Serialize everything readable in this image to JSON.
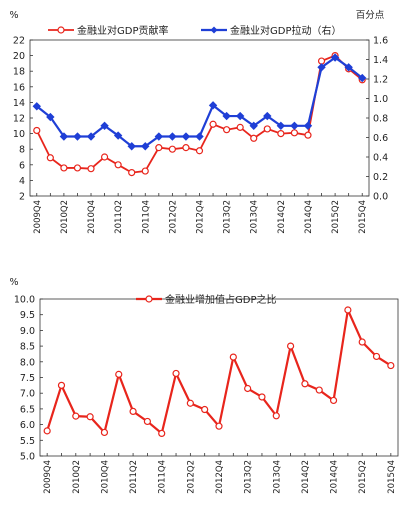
{
  "chart_data": [
    {
      "type": "line",
      "title": "",
      "ylabel_left": "%",
      "ylabel_right": "百分点",
      "ylim_left": [
        2,
        22
      ],
      "yticks_left": [
        "2",
        "4",
        "6",
        "8",
        "10",
        "12",
        "14",
        "16",
        "18",
        "20",
        "22"
      ],
      "ylim_right": [
        0.0,
        1.6
      ],
      "yticks_right": [
        "0.0",
        "0.2",
        "0.4",
        "0.6",
        "0.8",
        "1.0",
        "1.2",
        "1.4",
        "1.6"
      ],
      "grid": false,
      "legend_position": "top",
      "x": [
        "2009Q4",
        "2010Q1",
        "2010Q2",
        "2010Q3",
        "2010Q4",
        "2011Q1",
        "2011Q2",
        "2011Q3",
        "2011Q4",
        "2012Q1",
        "2012Q2",
        "2012Q3",
        "2012Q4",
        "2013Q1",
        "2013Q2",
        "2013Q3",
        "2013Q4",
        "2014Q1",
        "2014Q2",
        "2014Q3",
        "2014Q4",
        "2015Q1",
        "2015Q2",
        "2015Q3",
        "2015Q4"
      ],
      "xtick_labels": [
        "2009Q4",
        "2010Q2",
        "2010Q4",
        "2011Q2",
        "2011Q4",
        "2012Q2",
        "2012Q4",
        "2013Q2",
        "2013Q4",
        "2014Q2",
        "2014Q4",
        "2015Q2",
        "2015Q4"
      ],
      "series": [
        {
          "name": "金融业对GDP贡献率",
          "axis": "left",
          "color": "#e8251c",
          "marker": "open-circle",
          "values": [
            10.4,
            6.9,
            5.6,
            5.6,
            5.5,
            7.0,
            6.0,
            5.0,
            5.2,
            8.2,
            8.0,
            8.2,
            7.8,
            11.2,
            10.5,
            10.8,
            9.4,
            10.6,
            10.0,
            10.1,
            9.8,
            19.3,
            20.0,
            18.3,
            16.9
          ]
        },
        {
          "name": "金融业对GDP拉动（右）",
          "axis": "right",
          "color": "#1f3fd6",
          "marker": "filled-diamond",
          "values": [
            0.92,
            0.81,
            0.61,
            0.61,
            0.61,
            0.72,
            0.62,
            0.51,
            0.51,
            0.61,
            0.61,
            0.61,
            0.61,
            0.93,
            0.82,
            0.82,
            0.72,
            0.82,
            0.72,
            0.72,
            0.72,
            1.32,
            1.42,
            1.32,
            1.21
          ]
        }
      ]
    },
    {
      "type": "line",
      "title": "",
      "ylabel": "%",
      "ylim": [
        5.0,
        10.0
      ],
      "yticks": [
        "5.0",
        "5.5",
        "6.0",
        "6.5",
        "7.0",
        "7.5",
        "8.0",
        "8.5",
        "9.0",
        "9.5",
        "10.0"
      ],
      "grid": false,
      "legend_position": "top",
      "x": [
        "2009Q4",
        "2010Q1",
        "2010Q2",
        "2010Q3",
        "2010Q4",
        "2011Q1",
        "2011Q2",
        "2011Q3",
        "2011Q4",
        "2012Q1",
        "2012Q2",
        "2012Q3",
        "2012Q4",
        "2013Q1",
        "2013Q2",
        "2013Q3",
        "2013Q4",
        "2014Q1",
        "2014Q2",
        "2014Q3",
        "2014Q4",
        "2015Q1",
        "2015Q2",
        "2015Q3",
        "2015Q4"
      ],
      "xtick_labels": [
        "2009Q4",
        "2010Q2",
        "2010Q4",
        "2011Q2",
        "2011Q4",
        "2012Q2",
        "2012Q4",
        "2013Q2",
        "2013Q4",
        "2014Q2",
        "2014Q4",
        "2015Q2",
        "2015Q4"
      ],
      "series": [
        {
          "name": "金融业增加值占GDP之比",
          "color": "#e8251c",
          "marker": "open-circle",
          "values": [
            5.8,
            7.25,
            6.27,
            6.25,
            5.75,
            7.6,
            6.42,
            6.1,
            5.72,
            7.63,
            6.68,
            6.48,
            5.95,
            8.15,
            7.15,
            6.88,
            6.28,
            8.5,
            7.3,
            7.1,
            6.77,
            9.65,
            8.63,
            8.17,
            7.88
          ]
        }
      ]
    }
  ]
}
